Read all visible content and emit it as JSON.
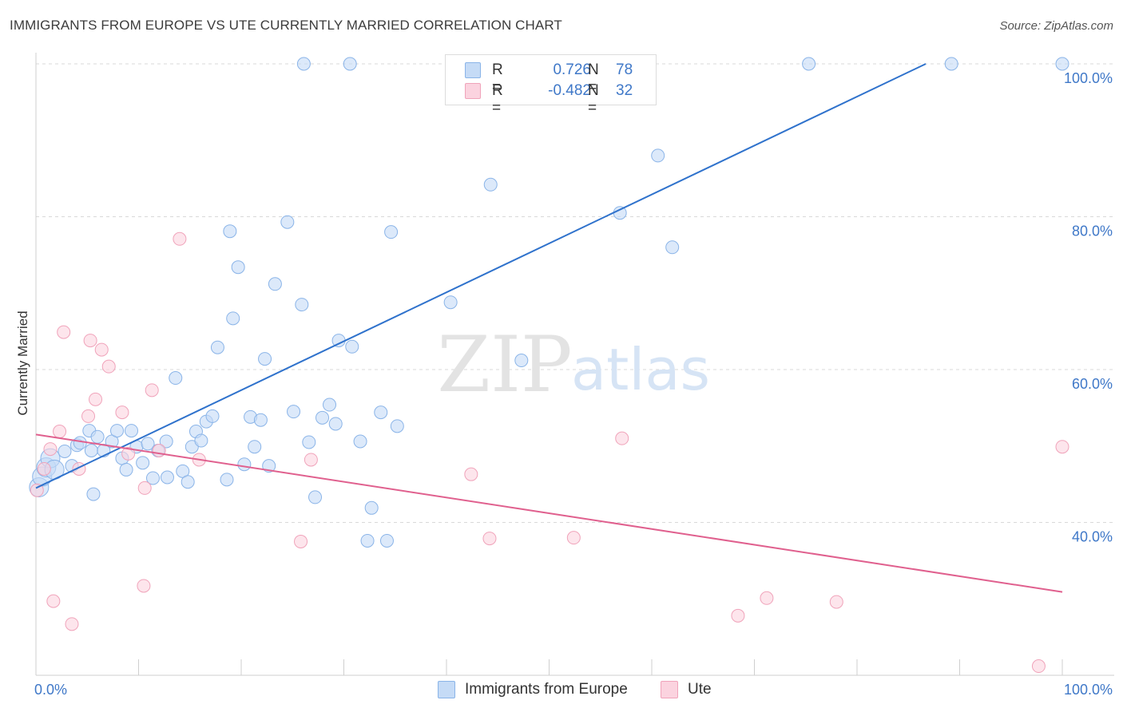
{
  "title": "IMMIGRANTS FROM EUROPE VS UTE CURRENTLY MARRIED CORRELATION CHART",
  "source": "Source: ZipAtlas.com",
  "watermark": {
    "zip": "ZIP",
    "atlas": "atlas"
  },
  "legend": {
    "r_label": "R =",
    "n_label": "N =",
    "rows": [
      {
        "r": "0.726",
        "n": "78"
      },
      {
        "r": "-0.482",
        "n": "32"
      }
    ]
  },
  "chart_data": {
    "type": "scatter",
    "title": "IMMIGRANTS FROM EUROPE VS UTE CURRENTLY MARRIED CORRELATION CHART",
    "xlabel": "",
    "ylabel": "Currently Married",
    "xlim": [
      0,
      100
    ],
    "ylim": [
      20,
      100
    ],
    "x_tick_labels": [
      "0.0%",
      "100.0%"
    ],
    "y_ticks": [
      40,
      60,
      80,
      100
    ],
    "y_tick_labels": [
      "40.0%",
      "60.0%",
      "80.0%",
      "100.0%"
    ],
    "grid": "horizontal dashed",
    "legend_position": "top-center",
    "series": [
      {
        "name": "Immigrants from Europe",
        "color": "#8ab4e8",
        "line_color": "#2f72cc",
        "trend": {
          "x": [
            0,
            86.7
          ],
          "y": [
            44.5,
            100
          ]
        },
        "points": [
          [
            0.3,
            44.6
          ],
          [
            0.6,
            46.0
          ],
          [
            1.0,
            47.2
          ],
          [
            1.4,
            48.4
          ],
          [
            1.8,
            46.9
          ],
          [
            2.8,
            49.3
          ],
          [
            3.5,
            47.4
          ],
          [
            4.0,
            50.1
          ],
          [
            4.3,
            50.4
          ],
          [
            5.2,
            52.0
          ],
          [
            5.4,
            49.4
          ],
          [
            5.6,
            43.7
          ],
          [
            6.0,
            51.2
          ],
          [
            6.6,
            49.4
          ],
          [
            7.4,
            50.6
          ],
          [
            7.9,
            52.0
          ],
          [
            8.4,
            48.4
          ],
          [
            8.8,
            46.9
          ],
          [
            9.3,
            52.0
          ],
          [
            9.8,
            49.9
          ],
          [
            10.4,
            47.8
          ],
          [
            10.9,
            50.3
          ],
          [
            11.4,
            45.8
          ],
          [
            11.9,
            49.4
          ],
          [
            12.7,
            50.6
          ],
          [
            12.8,
            45.9
          ],
          [
            13.6,
            58.9
          ],
          [
            14.3,
            46.7
          ],
          [
            14.8,
            45.3
          ],
          [
            15.2,
            49.9
          ],
          [
            15.6,
            51.9
          ],
          [
            16.1,
            50.7
          ],
          [
            16.6,
            53.2
          ],
          [
            17.2,
            53.9
          ],
          [
            17.7,
            62.9
          ],
          [
            18.6,
            45.6
          ],
          [
            18.9,
            78.1
          ],
          [
            19.2,
            66.7
          ],
          [
            19.7,
            73.4
          ],
          [
            20.3,
            47.6
          ],
          [
            20.9,
            53.8
          ],
          [
            21.3,
            49.9
          ],
          [
            21.9,
            53.4
          ],
          [
            22.3,
            61.4
          ],
          [
            22.7,
            47.4
          ],
          [
            23.3,
            71.2
          ],
          [
            24.5,
            79.3
          ],
          [
            25.1,
            54.5
          ],
          [
            25.9,
            68.5
          ],
          [
            26.6,
            50.5
          ],
          [
            27.2,
            43.3
          ],
          [
            27.9,
            53.7
          ],
          [
            28.6,
            55.4
          ],
          [
            29.2,
            52.9
          ],
          [
            29.5,
            63.8
          ],
          [
            30.8,
            63.0
          ],
          [
            31.6,
            50.6
          ],
          [
            32.3,
            37.6
          ],
          [
            32.7,
            41.9
          ],
          [
            33.6,
            54.4
          ],
          [
            34.2,
            37.6
          ],
          [
            34.6,
            78.0
          ],
          [
            35.2,
            52.6
          ],
          [
            40.4,
            68.8
          ],
          [
            44.3,
            84.2
          ],
          [
            47.3,
            61.2
          ],
          [
            56.9,
            80.5
          ],
          [
            60.6,
            88.0
          ],
          [
            62.0,
            76.0
          ],
          [
            26.1,
            100
          ],
          [
            30.6,
            100
          ],
          [
            47.4,
            100
          ],
          [
            56.6,
            100
          ],
          [
            75.3,
            100
          ],
          [
            89.2,
            100
          ],
          [
            100,
            100
          ],
          [
            47.7,
            100
          ],
          [
            46.8,
            100
          ]
        ]
      },
      {
        "name": "Ute",
        "color": "#f4a9c0",
        "line_color": "#e0608e",
        "trend": {
          "x": [
            0,
            100
          ],
          "y": [
            51.5,
            30.9
          ]
        },
        "points": [
          [
            0.1,
            44.2
          ],
          [
            0.8,
            47.0
          ],
          [
            1.4,
            49.6
          ],
          [
            1.7,
            29.7
          ],
          [
            2.3,
            51.9
          ],
          [
            2.7,
            64.9
          ],
          [
            3.5,
            26.7
          ],
          [
            4.2,
            47.0
          ],
          [
            5.1,
            53.9
          ],
          [
            5.3,
            63.8
          ],
          [
            5.8,
            56.1
          ],
          [
            6.4,
            62.6
          ],
          [
            7.1,
            60.4
          ],
          [
            8.4,
            54.4
          ],
          [
            9.0,
            49.0
          ],
          [
            10.5,
            31.7
          ],
          [
            10.6,
            44.5
          ],
          [
            11.3,
            57.3
          ],
          [
            12.0,
            49.4
          ],
          [
            14.0,
            77.1
          ],
          [
            15.9,
            48.2
          ],
          [
            25.8,
            37.5
          ],
          [
            26.8,
            48.2
          ],
          [
            42.4,
            46.3
          ],
          [
            44.2,
            37.9
          ],
          [
            52.4,
            38.0
          ],
          [
            57.1,
            51.0
          ],
          [
            68.4,
            27.8
          ],
          [
            71.2,
            30.1
          ],
          [
            78.0,
            29.6
          ],
          [
            97.7,
            21.2
          ],
          [
            100,
            49.9
          ]
        ]
      }
    ]
  },
  "bottom_legend": [
    {
      "label": "Immigrants from Europe"
    },
    {
      "label": "Ute"
    }
  ],
  "colors": {
    "blue_fill": "#c5dbf6",
    "blue_stroke": "#8ab4e8",
    "blue_line": "#2f72cc",
    "pink_fill": "#fbd3df",
    "pink_stroke": "#f0a3ba",
    "pink_line": "#e0608e",
    "tick_label": "#3f78c8",
    "grid": "#d9d9d9"
  }
}
